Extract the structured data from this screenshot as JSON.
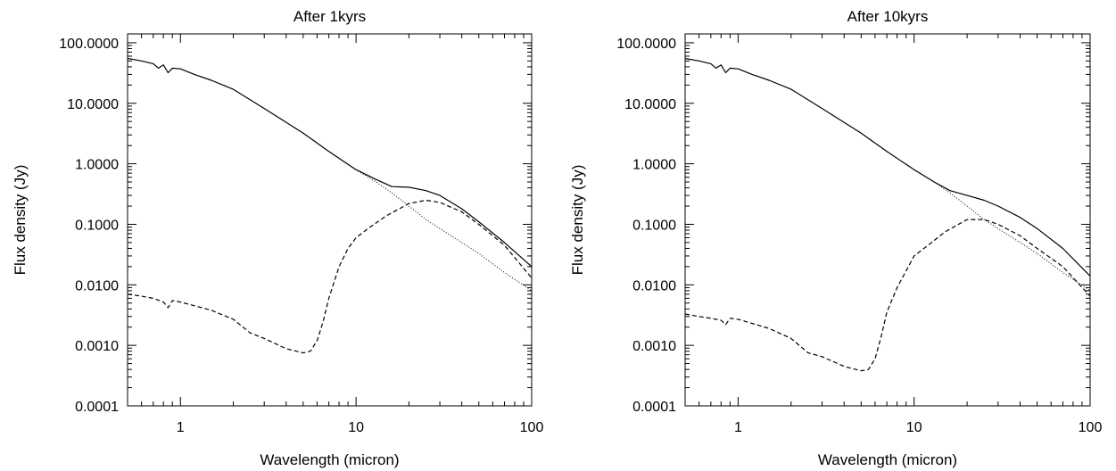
{
  "chart_data": [
    {
      "type": "line",
      "title": "After 1kyrs",
      "xlabel": "Wavelength (micron)",
      "ylabel": "Flux density (Jy)",
      "x_scale": "log",
      "y_scale": "log",
      "xlim": [
        0.5,
        100
      ],
      "ylim": [
        0.0001,
        140
      ],
      "x_tick_values": [
        1,
        10,
        100
      ],
      "x_tick_labels": [
        "1",
        "10",
        "100"
      ],
      "y_tick_values": [
        100,
        10,
        1,
        0.1,
        0.01,
        0.001,
        0.0001
      ],
      "y_tick_labels": [
        "100.0000",
        "10.0000",
        "1.0000",
        "0.1000",
        "0.0100",
        "0.0010",
        "0.0001"
      ],
      "grid": false,
      "legend": "none",
      "series": [
        {
          "style": "solid",
          "x": [
            0.5,
            0.6,
            0.7,
            0.75,
            0.8,
            0.85,
            0.9,
            1.0,
            1.2,
            1.5,
            2.0,
            3.0,
            5.0,
            7.0,
            10.0,
            13.0,
            16.0,
            20.0,
            25.0,
            30.0,
            40.0,
            50.0,
            70.0,
            100.0
          ],
          "y": [
            55,
            50,
            45,
            38,
            43,
            32,
            38,
            37,
            30,
            24,
            17,
            8.2,
            3.2,
            1.6,
            0.8,
            0.55,
            0.42,
            0.41,
            0.36,
            0.3,
            0.18,
            0.11,
            0.05,
            0.02
          ]
        },
        {
          "style": "dashed",
          "x": [
            0.5,
            0.6,
            0.7,
            0.8,
            0.85,
            0.9,
            1.0,
            1.5,
            2.0,
            2.5,
            3.0,
            4.0,
            5.0,
            5.5,
            6.0,
            6.5,
            7.0,
            8.0,
            9.0,
            10.0,
            12.0,
            15.0,
            20.0,
            25.0,
            30.0,
            40.0,
            50.0,
            70.0,
            100.0
          ],
          "y": [
            0.007,
            0.0065,
            0.006,
            0.0052,
            0.0042,
            0.0055,
            0.0052,
            0.0038,
            0.0027,
            0.0016,
            0.0013,
            0.00088,
            0.00075,
            0.0008,
            0.0012,
            0.0025,
            0.006,
            0.02,
            0.04,
            0.06,
            0.09,
            0.14,
            0.22,
            0.25,
            0.23,
            0.16,
            0.1,
            0.045,
            0.013
          ]
        },
        {
          "style": "dotted",
          "x": [
            10.0,
            13.0,
            16.0,
            20.0,
            25.0,
            30.0,
            40.0,
            50.0,
            70.0,
            100.0
          ],
          "y": [
            0.8,
            0.5,
            0.33,
            0.2,
            0.12,
            0.085,
            0.05,
            0.033,
            0.016,
            0.008
          ]
        }
      ]
    },
    {
      "type": "line",
      "title": "After 10kyrs",
      "xlabel": "Wavelength (micron)",
      "ylabel": "Flux density (Jy)",
      "x_scale": "log",
      "y_scale": "log",
      "xlim": [
        0.5,
        100
      ],
      "ylim": [
        0.0001,
        140
      ],
      "x_tick_values": [
        1,
        10,
        100
      ],
      "x_tick_labels": [
        "1",
        "10",
        "100"
      ],
      "y_tick_values": [
        100,
        10,
        1,
        0.1,
        0.01,
        0.001,
        0.0001
      ],
      "y_tick_labels": [
        "100.0000",
        "10.0000",
        "1.0000",
        "0.1000",
        "0.0100",
        "0.0010",
        "0.0001"
      ],
      "grid": false,
      "legend": "none",
      "series": [
        {
          "style": "solid",
          "x": [
            0.5,
            0.6,
            0.7,
            0.75,
            0.8,
            0.85,
            0.9,
            1.0,
            1.2,
            1.5,
            2.0,
            3.0,
            5.0,
            7.0,
            10.0,
            13.0,
            16.0,
            20.0,
            25.0,
            30.0,
            40.0,
            50.0,
            70.0,
            100.0
          ],
          "y": [
            55,
            50,
            45,
            38,
            43,
            32,
            38,
            37,
            30,
            24,
            17,
            8.2,
            3.2,
            1.6,
            0.8,
            0.5,
            0.36,
            0.3,
            0.25,
            0.2,
            0.13,
            0.085,
            0.04,
            0.014
          ]
        },
        {
          "style": "dashed",
          "x": [
            0.5,
            0.6,
            0.7,
            0.8,
            0.85,
            0.9,
            1.0,
            1.5,
            2.0,
            2.5,
            3.0,
            4.0,
            5.0,
            5.5,
            6.0,
            6.5,
            7.0,
            8.0,
            9.0,
            10.0,
            12.0,
            15.0,
            20.0,
            25.0,
            30.0,
            40.0,
            50.0,
            70.0,
            100.0
          ],
          "y": [
            0.0033,
            0.003,
            0.0028,
            0.0026,
            0.0022,
            0.0028,
            0.0027,
            0.0019,
            0.0013,
            0.00075,
            0.00065,
            0.00045,
            0.00038,
            0.0004,
            0.0006,
            0.0014,
            0.0035,
            0.009,
            0.017,
            0.03,
            0.045,
            0.075,
            0.12,
            0.12,
            0.1,
            0.065,
            0.04,
            0.02,
            0.0065
          ]
        },
        {
          "style": "dotted",
          "x": [
            10.0,
            13.0,
            16.0,
            20.0,
            25.0,
            30.0,
            40.0,
            50.0,
            70.0,
            100.0
          ],
          "y": [
            0.8,
            0.5,
            0.33,
            0.2,
            0.12,
            0.085,
            0.05,
            0.033,
            0.016,
            0.008
          ]
        }
      ]
    }
  ]
}
